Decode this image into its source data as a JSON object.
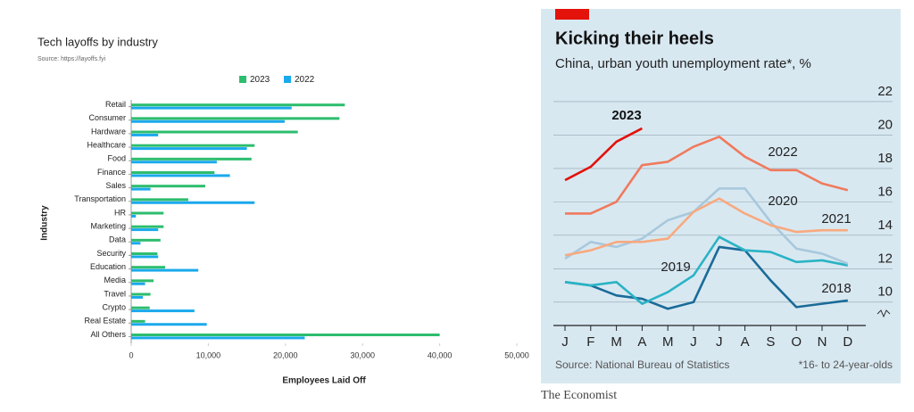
{
  "chart_data": [
    {
      "type": "hbar",
      "title": "Tech layoffs by industry",
      "subtitle": "Source: https://layoffs.fyi",
      "categories": [
        "Retail",
        "Consumer",
        "Hardware",
        "Healthcare",
        "Food",
        "Finance",
        "Sales",
        "Transportation",
        "HR",
        "Marketing",
        "Data",
        "Security",
        "Education",
        "Media",
        "Travel",
        "Crypto",
        "Real Estate",
        "All Others"
      ],
      "series": [
        {
          "name": "2023",
          "color": "#2dbd6e",
          "values": [
            27700,
            27000,
            21600,
            16000,
            15600,
            10800,
            9600,
            7400,
            4200,
            4200,
            3800,
            3400,
            4400,
            2900,
            2500,
            2400,
            1800,
            40000
          ]
        },
        {
          "name": "2022",
          "color": "#1aa9ec",
          "values": [
            20800,
            19900,
            3500,
            15000,
            11100,
            12800,
            2500,
            16000,
            600,
            3500,
            1200,
            3500,
            8700,
            1800,
            1500,
            8200,
            9800,
            22500
          ]
        }
      ],
      "xlim": [
        0,
        50000
      ],
      "xticks": [
        0,
        {
          "value": 10000,
          "label": "10,000"
        },
        {
          "value": 20000,
          "label": "20,000"
        },
        {
          "value": 30000,
          "label": "30,000"
        },
        {
          "value": 40000,
          "label": "40,000"
        },
        {
          "value": 50000,
          "label": "50,000"
        }
      ],
      "xlabel": "Employees Laid Off",
      "ylabel": "Industry",
      "legend": "top",
      "grid": false
    },
    {
      "type": "line",
      "title": "Kicking their heels",
      "subtitle": "China, urban youth unemployment rate*, %",
      "categories": [
        "J",
        "F",
        "M",
        "A",
        "M",
        "J",
        "J",
        "A",
        "S",
        "O",
        "N",
        "D"
      ],
      "series": [
        {
          "name": "2023",
          "color": "#e3120b",
          "values": [
            17.3,
            18.1,
            19.6,
            20.4,
            null,
            null,
            null,
            null,
            null,
            null,
            null,
            null
          ]
        },
        {
          "name": "2022",
          "color": "#f07a5d",
          "values": [
            15.3,
            15.3,
            16.0,
            18.2,
            18.4,
            19.3,
            19.9,
            18.7,
            17.9,
            17.9,
            17.1,
            16.7
          ]
        },
        {
          "name": "2021",
          "color": "#f8a97f",
          "values": [
            12.8,
            13.1,
            13.6,
            13.6,
            13.8,
            15.4,
            16.2,
            15.3,
            14.6,
            14.2,
            14.3,
            14.3
          ]
        },
        {
          "name": "2020",
          "color": "#a8c8dc",
          "values": [
            12.6,
            13.6,
            13.3,
            13.8,
            14.9,
            15.4,
            16.8,
            16.8,
            14.8,
            13.2,
            12.9,
            12.3
          ]
        },
        {
          "name": "2019",
          "color": "#2ab3c5",
          "values": [
            11.2,
            11.0,
            11.2,
            9.9,
            10.6,
            11.6,
            13.9,
            13.1,
            13.0,
            12.4,
            12.5,
            12.2
          ]
        },
        {
          "name": "2018",
          "color": "#1a6b98",
          "values": [
            11.2,
            11.0,
            10.4,
            10.2,
            9.6,
            10.0,
            13.3,
            13.1,
            11.3,
            9.7,
            9.9,
            10.1
          ]
        }
      ],
      "ylim": [
        8.6,
        22.5
      ],
      "yticks": [
        10,
        12,
        14,
        16,
        18,
        20,
        22
      ],
      "grid": true,
      "source": "Source: National Bureau of Statistics",
      "footnote": "*16- to 24-year-olds"
    }
  ],
  "footer": "The Economist"
}
